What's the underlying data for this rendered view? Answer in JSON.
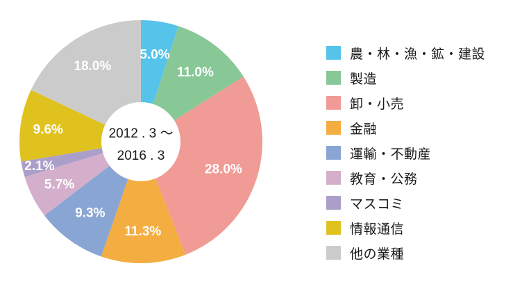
{
  "chart_data": {
    "type": "pie",
    "variant": "donut",
    "title": "",
    "center_label": [
      "2012 . 3 ～",
      "2016 . 3"
    ],
    "categories": [
      "農・林・漁・鉱・建設",
      "製造",
      "卸・小売",
      "金融",
      "運輸・不動産",
      "教育・公務",
      "マスコミ",
      "情報通信",
      "他の業種"
    ],
    "values": [
      5.0,
      11.0,
      28.0,
      11.3,
      9.3,
      5.7,
      2.1,
      9.6,
      18.0
    ],
    "value_labels": [
      "5.0%",
      "11.0%",
      "28.0%",
      "11.3%",
      "9.3%",
      "5.7%",
      "2.1%",
      "9.6%",
      "18.0%"
    ],
    "colors": [
      "#56c3ea",
      "#88c897",
      "#f09b96",
      "#f4ad40",
      "#88a5d3",
      "#d4afcc",
      "#ab9fca",
      "#dfc21e",
      "#cccbcb"
    ],
    "start_angle": "12 o'clock",
    "direction": "clockwise",
    "legend_position": "right",
    "unit": "%"
  },
  "legend": {
    "items": [
      {
        "label": "農・林・漁・鉱・建設",
        "color": "#56c3ea"
      },
      {
        "label": "製造",
        "color": "#88c897"
      },
      {
        "label": "卸・小売",
        "color": "#f09b96"
      },
      {
        "label": "金融",
        "color": "#f4ad40"
      },
      {
        "label": "運輸・不動産",
        "color": "#88a5d3"
      },
      {
        "label": "教育・公務",
        "color": "#d4afcc"
      },
      {
        "label": "マスコミ",
        "color": "#ab9fca"
      },
      {
        "label": "情報通信",
        "color": "#dfc21e"
      },
      {
        "label": "他の業種",
        "color": "#cccbcb"
      }
    ]
  }
}
